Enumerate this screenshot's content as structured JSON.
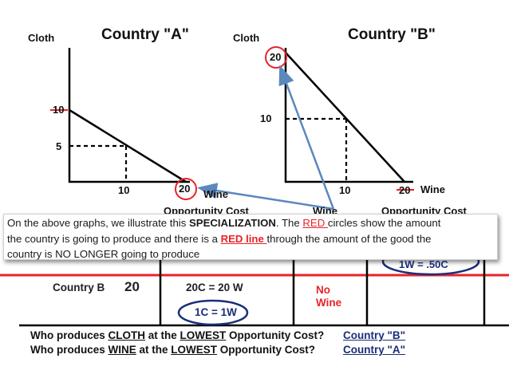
{
  "country_a": {
    "title": "Country \"A\"",
    "y_axis_label": "Cloth",
    "x_axis_label": "Wine",
    "y_tick_top": "10",
    "y_tick_mid": "5",
    "x_tick_mid": "10",
    "x_tick_end": "20",
    "footer_partial": "Opportunity Cost"
  },
  "country_b": {
    "title": "Country \"B\"",
    "y_axis_label": "Cloth",
    "x_axis_label": "Wine",
    "y_tick_top": "20",
    "y_tick_mid": "10",
    "x_tick_mid": "10",
    "x_tick_end": "20",
    "footer_partial": "Opportunity Cost",
    "footer_partial_mid": "Wine"
  },
  "callout": {
    "line1_a": "On the above graphs, we illustrate this ",
    "line1_b": "SPECIALIZATION",
    "line1_c": ".  The ",
    "line1_d": "RED ",
    "line1_e": "circles show the amount",
    "line2_a": "the country is going to produce and there is a ",
    "line2_b": "RED line ",
    "line2_c": "through the amount of the good the",
    "line3": "country is NO LONGER going to produce"
  },
  "table": {
    "right_top_partial": "1W = .50C",
    "row_label": "Country B",
    "row_value": "20",
    "equation": "20C = 20 W",
    "circled": "1C = 1W",
    "no_label": "No",
    "wine_label": "Wine"
  },
  "questions": {
    "q1_a": "Who produces ",
    "q1_b": "CLOTH",
    "q1_c": " at the ",
    "q1_d": "LOWEST",
    "q1_e": " Opportunity Cost?",
    "a1": "Country \"B\"",
    "q2_a": "Who produces ",
    "q2_b": "WINE",
    "q2_c": " at the ",
    "q2_d": "LOWEST",
    "q2_e": " Opportunity Cost?",
    "a2": "Country \"A\""
  },
  "colors": {
    "red": "#e8232a",
    "arrow_blue": "#5b88bd",
    "navy_circle": "#1b2e78"
  }
}
